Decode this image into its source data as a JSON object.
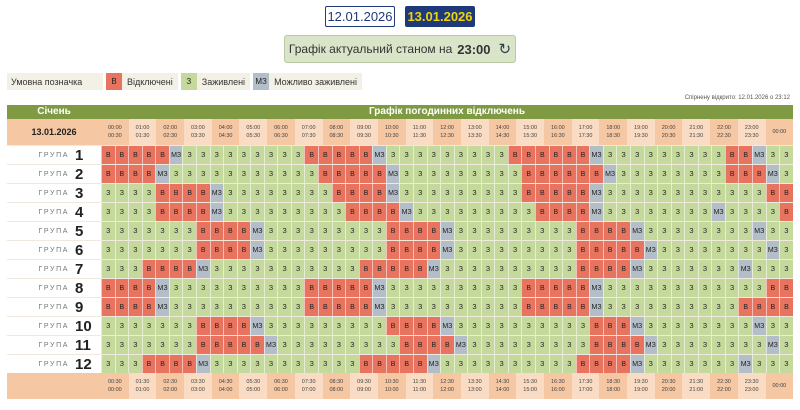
{
  "dates": [
    "12.01.2026",
    "13.01.2026"
  ],
  "status": {
    "label": "Графік актуальний станом на",
    "time": "23:00"
  },
  "legend": {
    "title": "Умовна позначка",
    "items": [
      {
        "code": "В",
        "label": "Відключені",
        "color": "#e8735f"
      },
      {
        "code": "З",
        "label": "Заживлені",
        "color": "#c6d99d"
      },
      {
        "code": "МЗ",
        "label": "Можливо заживлені",
        "color": "#b4bec8"
      }
    ]
  },
  "note": "Спірнену відкрито: 12.01.2026 о 23:12",
  "table": {
    "month": "Січень",
    "title": "Графік погодинних відключень",
    "date": "13.01.2026",
    "group_word": "ГРУПА"
  },
  "times_top": [
    "00:00",
    "00:30",
    "01:00",
    "01:30",
    "02:00",
    "02:30",
    "03:00",
    "03:30",
    "04:00",
    "04:30",
    "05:00",
    "05:30",
    "06:00",
    "06:30",
    "07:00",
    "07:30",
    "08:00",
    "08:30",
    "09:00",
    "09:30",
    "10:00",
    "10:30",
    "11:00",
    "11:30",
    "12:00",
    "12:30",
    "13:00",
    "13:30",
    "14:00",
    "14:30",
    "15:00",
    "15:30",
    "16:00",
    "16:30",
    "17:00",
    "17:30",
    "18:00",
    "18:30",
    "19:00",
    "19:30",
    "20:00",
    "20:30",
    "21:00",
    "21:30",
    "22:00",
    "22:30",
    "23:00",
    "23:30",
    "00:00"
  ],
  "codes": [
    "В",
    "З",
    "МЗ"
  ],
  "colors": [
    "#e8735f",
    "#c6d99d",
    "#b4bec8"
  ],
  "groups": [
    {
      "num": "1",
      "cells": "000002111111111000002111111111000000211111111100211"
    },
    {
      "num": "2",
      "cells": "000021111111111100000211111111100000021111111100021"
    },
    {
      "num": "3",
      "cells": "111100002111111110000211111111100000211111111111100"
    },
    {
      "num": "4",
      "cells": "111100002111111111000021111111110000211111111211110"
    },
    {
      "num": "5",
      "cells": "111111100002111111111000021111111110000211111111211"
    },
    {
      "num": "6",
      "cells": "111111100002111111111000021111111110000021111111121"
    },
    {
      "num": "7",
      "cells": "111000021111111111100000211111111110000211111112111"
    },
    {
      "num": "8",
      "cells": "000021111111111000002111111111100000211111111111100"
    },
    {
      "num": "9",
      "cells": "000021111111111000002111111111100000211111111110000"
    },
    {
      "num": "10",
      "cells": "111111100002111111111000021111111111000211111111211"
    },
    {
      "num": "11",
      "cells": "111111100000211111111100002111111111000021111111121"
    },
    {
      "num": "12",
      "cells": "111000021111111111100000211111111110000211111112111"
    }
  ]
}
